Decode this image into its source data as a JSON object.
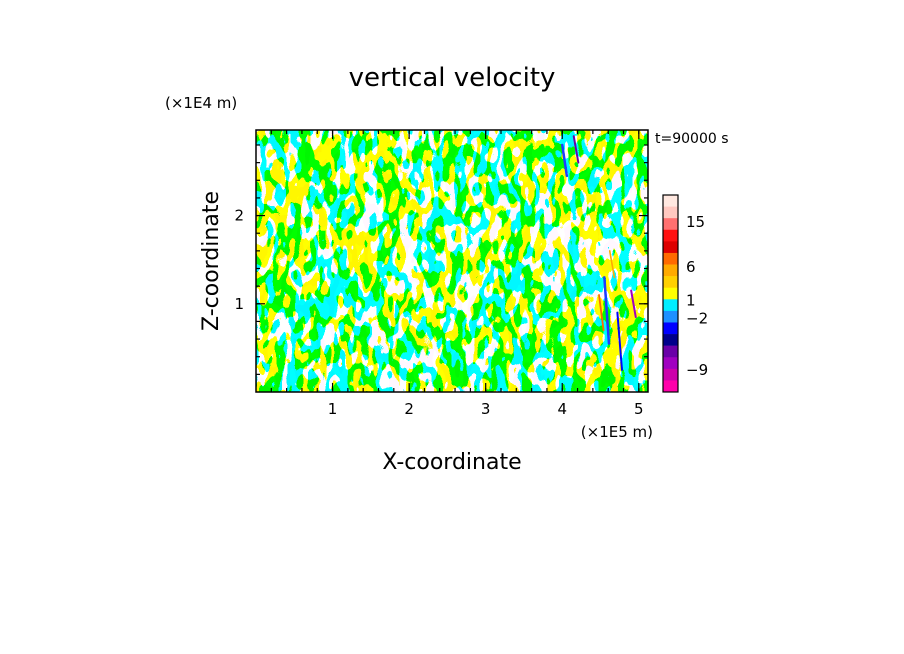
{
  "chart_data": {
    "type": "heatmap",
    "title": "vertical velocity",
    "xlabel": "X-coordinate",
    "ylabel": "Z-coordinate",
    "x_unit": "(×1E5 m)",
    "y_unit": "(×1E4 m)",
    "time_label": "t=90000 s",
    "xlim": [
      0.0,
      5.12
    ],
    "ylim": [
      0.0,
      2.97
    ],
    "x_ticks": [
      {
        "value": 1,
        "label": "1"
      },
      {
        "value": 2,
        "label": "2"
      },
      {
        "value": 3,
        "label": "3"
      },
      {
        "value": 4,
        "label": "4"
      },
      {
        "value": 5,
        "label": "5"
      }
    ],
    "y_ticks": [
      {
        "value": 1,
        "label": "1"
      },
      {
        "value": 2,
        "label": "2"
      }
    ],
    "x_minor_step": 0.2,
    "y_minor_step": 0.2,
    "dominant_colors": {
      "positive": "#ffff00",
      "negative": "#00eeff"
    },
    "colorbar": {
      "levels_top_to_bottom": [
        {
          "color": "#ffe8e0"
        },
        {
          "color": "#ffc8c0"
        },
        {
          "color": "#ff7070"
        },
        {
          "color": "#ff1010"
        },
        {
          "color": "#dd0000"
        },
        {
          "color": "#ff6a00"
        },
        {
          "color": "#ffaa00"
        },
        {
          "color": "#ffd000"
        },
        {
          "color": "#ffff00"
        },
        {
          "color": "#00eeff"
        },
        {
          "color": "#1e90ff"
        },
        {
          "color": "#0000ff"
        },
        {
          "color": "#00008b"
        },
        {
          "color": "#6a00a8"
        },
        {
          "color": "#a000c0"
        },
        {
          "color": "#cc00aa"
        },
        {
          "color": "#ff00aa"
        }
      ],
      "labels": [
        {
          "value": 15,
          "label": "15"
        },
        {
          "value": 6,
          "label": "6"
        },
        {
          "value": 1,
          "label": "1"
        },
        {
          "value": -2,
          "label": "−2"
        },
        {
          "value": -9,
          "label": "−9"
        }
      ]
    }
  }
}
